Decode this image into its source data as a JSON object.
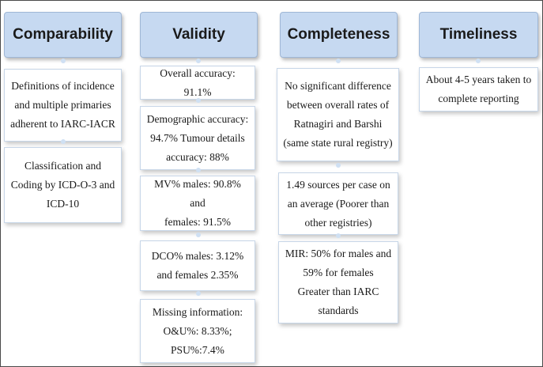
{
  "columns": [
    {
      "id": "comparability",
      "header": "Comparability",
      "items": [
        "Definitions of incidence\nand multiple primaries\nadherent to IARC-IACR",
        "Classification and\nCoding by ICD-O-3 and\nICD-10"
      ]
    },
    {
      "id": "validity",
      "header": "Validity",
      "items": [
        "Overall accuracy: 91.1%",
        "Demographic accuracy:\n94.7% Tumour details\naccuracy: 88%",
        "MV% males: 90.8% and\nfemales: 91.5%",
        "DCO% males: 3.12%\nand females 2.35%",
        "Missing information:\nO&U%: 8.33%;\nPSU%:7.4%"
      ]
    },
    {
      "id": "completeness",
      "header": "Completeness",
      "items": [
        "No significant difference\nbetween overall rates of\nRatnagiri and Barshi\n(same state rural registry)",
        "1.49 sources per case on\nan average (Poorer than\nother registries)",
        "MIR: 50% for males and\n59% for females\nGreater than IARC\nstandards"
      ]
    },
    {
      "id": "timeliness",
      "header": "Timeliness",
      "items": [
        "About 4-5 years taken to\ncomplete reporting"
      ]
    }
  ],
  "colors": {
    "header_fill": "#c6d9f1",
    "connector_dot": "#cfe0f3",
    "box_border": "#c7d6e8"
  }
}
